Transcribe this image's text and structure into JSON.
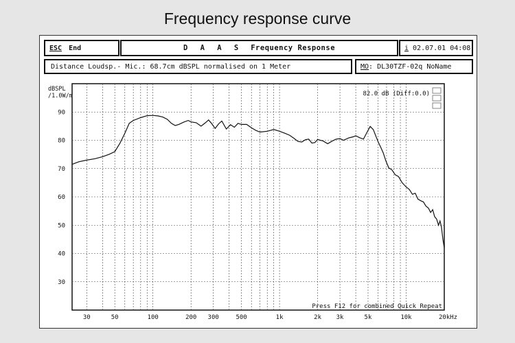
{
  "page_title": "Frequency response curve",
  "header": {
    "esc_key": "ESC",
    "esc_label": "End",
    "brand": "D A A S",
    "title": "Frequency Response",
    "info_key": "i",
    "datetime": "02.07.01 04:08"
  },
  "subheader": {
    "measurement": "Distance Loudsp.- Mic.: 68.7cm dBSPL normalised on 1 Meter",
    "model_key": "MO",
    "model_rest": ": DL30TZF-02q NoName"
  },
  "plot": {
    "y_unit_line1": "dBSPL",
    "y_unit_line2": "/1.0W/m",
    "level_readout": "82.0 dB (Diff:0.0)",
    "status_hint": "Press F12 for combined Quick Repeat"
  },
  "chart_data": {
    "type": "line",
    "x_scale": "log",
    "xlim": [
      23,
      20000
    ],
    "ylim": [
      20,
      100
    ],
    "grid": true,
    "x_ticks": [
      {
        "value": 30,
        "label": "30"
      },
      {
        "value": 50,
        "label": "50"
      },
      {
        "value": 100,
        "label": "100"
      },
      {
        "value": 200,
        "label": "200"
      },
      {
        "value": 300,
        "label": "300"
      },
      {
        "value": 500,
        "label": "500"
      },
      {
        "value": 1000,
        "label": "1k"
      },
      {
        "value": 2000,
        "label": "2k"
      },
      {
        "value": 3000,
        "label": "3k"
      },
      {
        "value": 5000,
        "label": "5k"
      },
      {
        "value": 10000,
        "label": "10k"
      },
      {
        "value": 20000,
        "label": "20kHz"
      }
    ],
    "y_ticks": [
      30,
      40,
      50,
      60,
      70,
      80,
      90
    ],
    "series": [
      {
        "color": "#111111",
        "points": [
          [
            23,
            71.5
          ],
          [
            26,
            72.4
          ],
          [
            30,
            73.0
          ],
          [
            35,
            73.5
          ],
          [
            40,
            74.2
          ],
          [
            45,
            75.0
          ],
          [
            50,
            76.0
          ],
          [
            55,
            79.0
          ],
          [
            60,
            82.5
          ],
          [
            65,
            86.0
          ],
          [
            70,
            87.0
          ],
          [
            80,
            88.0
          ],
          [
            90,
            88.7
          ],
          [
            100,
            88.8
          ],
          [
            110,
            88.6
          ],
          [
            120,
            88.2
          ],
          [
            130,
            87.4
          ],
          [
            140,
            86.0
          ],
          [
            150,
            85.2
          ],
          [
            160,
            85.6
          ],
          [
            175,
            86.4
          ],
          [
            190,
            87.0
          ],
          [
            200,
            86.5
          ],
          [
            220,
            86.2
          ],
          [
            240,
            85.0
          ],
          [
            260,
            86.2
          ],
          [
            275,
            87.2
          ],
          [
            290,
            86.0
          ],
          [
            310,
            84.2
          ],
          [
            330,
            85.8
          ],
          [
            350,
            86.8
          ],
          [
            380,
            84.0
          ],
          [
            410,
            85.5
          ],
          [
            440,
            84.6
          ],
          [
            470,
            86.0
          ],
          [
            500,
            85.6
          ],
          [
            550,
            85.6
          ],
          [
            600,
            84.4
          ],
          [
            650,
            83.5
          ],
          [
            700,
            82.9
          ],
          [
            800,
            83.2
          ],
          [
            900,
            83.8
          ],
          [
            1000,
            83.2
          ],
          [
            1100,
            82.5
          ],
          [
            1200,
            81.8
          ],
          [
            1300,
            80.7
          ],
          [
            1400,
            79.6
          ],
          [
            1500,
            79.4
          ],
          [
            1600,
            80.2
          ],
          [
            1700,
            80.4
          ],
          [
            1800,
            79.0
          ],
          [
            1900,
            79.2
          ],
          [
            2000,
            80.3
          ],
          [
            2100,
            80.0
          ],
          [
            2200,
            79.8
          ],
          [
            2400,
            78.8
          ],
          [
            2600,
            79.7
          ],
          [
            2800,
            80.4
          ],
          [
            3000,
            80.6
          ],
          [
            3200,
            80.0
          ],
          [
            3500,
            80.8
          ],
          [
            3800,
            81.2
          ],
          [
            4000,
            81.6
          ],
          [
            4300,
            80.9
          ],
          [
            4600,
            80.4
          ],
          [
            4900,
            82.8
          ],
          [
            5200,
            84.9
          ],
          [
            5500,
            83.8
          ],
          [
            6000,
            79.5
          ],
          [
            6300,
            77.5
          ],
          [
            6600,
            75.5
          ],
          [
            6900,
            72.8
          ],
          [
            7300,
            70.2
          ],
          [
            7700,
            69.6
          ],
          [
            8200,
            67.8
          ],
          [
            8700,
            67.2
          ],
          [
            9300,
            65.0
          ],
          [
            10000,
            63.5
          ],
          [
            10600,
            62.6
          ],
          [
            11200,
            60.9
          ],
          [
            11800,
            61.3
          ],
          [
            12400,
            59.2
          ],
          [
            13100,
            58.6
          ],
          [
            13700,
            58.2
          ],
          [
            14300,
            56.8
          ],
          [
            15000,
            56.0
          ],
          [
            15600,
            54.5
          ],
          [
            16200,
            55.5
          ],
          [
            16800,
            53.0
          ],
          [
            17400,
            52.2
          ],
          [
            18000,
            50.0
          ],
          [
            18500,
            51.5
          ],
          [
            19000,
            49.3
          ],
          [
            19500,
            45.0
          ],
          [
            20000,
            42.0
          ]
        ]
      }
    ]
  }
}
